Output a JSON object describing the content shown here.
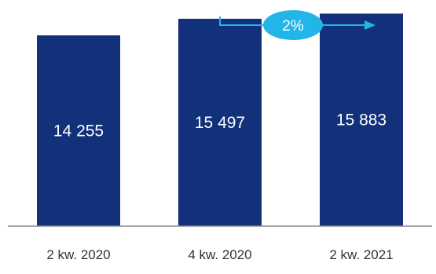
{
  "chart_data": {
    "type": "bar",
    "categories": [
      "2 kw. 2020",
      "4 kw. 2020",
      "2 kw. 2021"
    ],
    "values": [
      14255,
      15497,
      15883
    ],
    "value_labels": [
      "14 255",
      "15 497",
      "15 883"
    ],
    "title": "",
    "xlabel": "",
    "ylabel": "",
    "ylim": [
      0,
      16900
    ],
    "grid": false,
    "bar_color": "#12317a",
    "annotation": {
      "label": "2%",
      "from_category": "4 kw. 2020",
      "to_category": "2 kw. 2021",
      "color": "#22b5e8"
    }
  }
}
